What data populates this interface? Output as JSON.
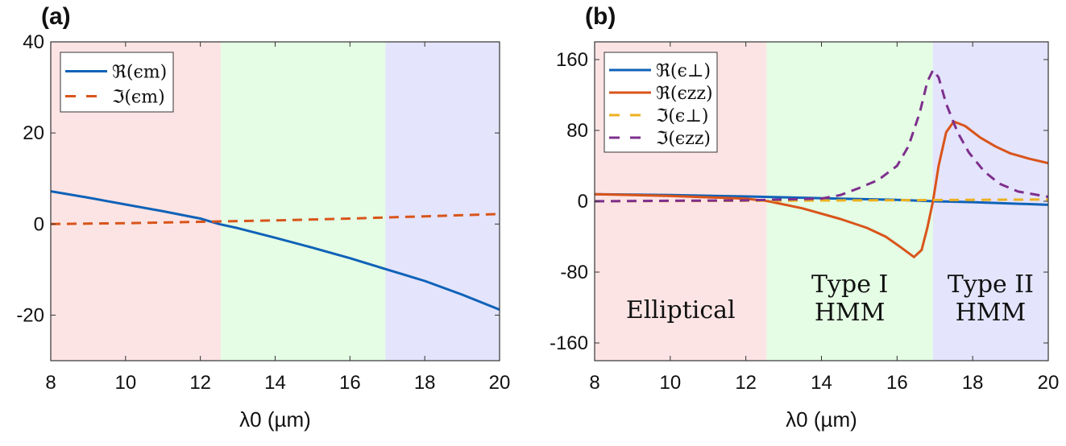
{
  "chart_data": [
    {
      "type": "line",
      "panel_label": "(a)",
      "xlabel": "λ0 (µm)",
      "xlim": [
        8,
        20
      ],
      "ylim": [
        -30,
        40
      ],
      "xticks": [
        8,
        10,
        12,
        14,
        16,
        18,
        20
      ],
      "yticks": [
        -20,
        0,
        20,
        40
      ],
      "grid": false,
      "legend_position": "top-left",
      "regions": [
        {
          "from": 8,
          "to": 12.55,
          "color": "#fde4e4"
        },
        {
          "from": 12.55,
          "to": 16.95,
          "color": "#e4fde4"
        },
        {
          "from": 16.95,
          "to": 20,
          "color": "#e4e4fc"
        }
      ],
      "series": [
        {
          "name": "ℜ(ϵm)",
          "color": "#0f62b8",
          "dash": false,
          "x": [
            8,
            9,
            10,
            11,
            12,
            12.5,
            13,
            14,
            15,
            16,
            17,
            18,
            19,
            20
          ],
          "y": [
            7.2,
            5.8,
            4.3,
            2.8,
            1.2,
            0,
            -0.9,
            -3,
            -5.2,
            -7.5,
            -10,
            -12.5,
            -15.5,
            -18.8
          ]
        },
        {
          "name": "ℑ(ϵm)",
          "color": "#d9541a",
          "dash": true,
          "x": [
            8,
            10,
            12,
            14,
            16,
            18,
            20
          ],
          "y": [
            0,
            0.2,
            0.5,
            0.8,
            1.2,
            1.7,
            2.2
          ]
        }
      ]
    },
    {
      "type": "line",
      "panel_label": "(b)",
      "xlabel": "λ0 (µm)",
      "xlim": [
        8,
        20
      ],
      "ylim": [
        -180,
        180
      ],
      "xticks": [
        8,
        10,
        12,
        14,
        16,
        18,
        20
      ],
      "yticks": [
        -160,
        -80,
        0,
        80,
        160
      ],
      "grid": false,
      "legend_position": "top-left",
      "regions": [
        {
          "from": 8,
          "to": 12.55,
          "color": "#fde4e4",
          "label": [
            "Elliptical"
          ]
        },
        {
          "from": 12.55,
          "to": 16.95,
          "color": "#e4fde4",
          "label": [
            "Type I",
            "HMM"
          ]
        },
        {
          "from": 16.95,
          "to": 20,
          "color": "#e4e4fc",
          "label": [
            "Type II",
            "HMM"
          ]
        }
      ],
      "series": [
        {
          "name": "ℜ(ϵ⊥)",
          "color": "#0f62b8",
          "dash": false,
          "x": [
            8,
            10,
            12,
            14,
            16,
            17,
            18,
            20
          ],
          "y": [
            8,
            7,
            5.5,
            3.5,
            1.5,
            0,
            -1,
            -4
          ]
        },
        {
          "name": "ℜ(ϵzz)",
          "color": "#d9541a",
          "dash": false,
          "x": [
            8,
            10,
            12,
            12.6,
            13.5,
            14.5,
            15.2,
            15.7,
            16.1,
            16.45,
            16.65,
            16.8,
            16.95,
            17.1,
            17.3,
            17.5,
            17.8,
            18.2,
            18.6,
            19,
            19.5,
            20
          ],
          "y": [
            8,
            6,
            3,
            0,
            -8,
            -20,
            -30,
            -40,
            -52,
            -63,
            -55,
            -30,
            0,
            40,
            78,
            90,
            85,
            72,
            62,
            54,
            48,
            43
          ]
        },
        {
          "name": "ℑ(ϵ⊥)",
          "color": "#edb120",
          "dash": true,
          "x": [
            8,
            12,
            16,
            20
          ],
          "y": [
            0,
            0.5,
            1.2,
            2
          ]
        },
        {
          "name": "ℑ(ϵzz)",
          "color": "#7e2f8e",
          "dash": true,
          "x": [
            8,
            10,
            12,
            14,
            14.5,
            15,
            15.5,
            16,
            16.3,
            16.6,
            16.8,
            16.95,
            17.1,
            17.3,
            17.6,
            17.9,
            18.3,
            18.7,
            19.2,
            20
          ],
          "y": [
            0,
            0.5,
            1,
            3,
            7,
            15,
            24,
            40,
            62,
            100,
            135,
            148,
            140,
            110,
            78,
            55,
            34,
            20,
            11,
            5
          ]
        }
      ]
    }
  ]
}
